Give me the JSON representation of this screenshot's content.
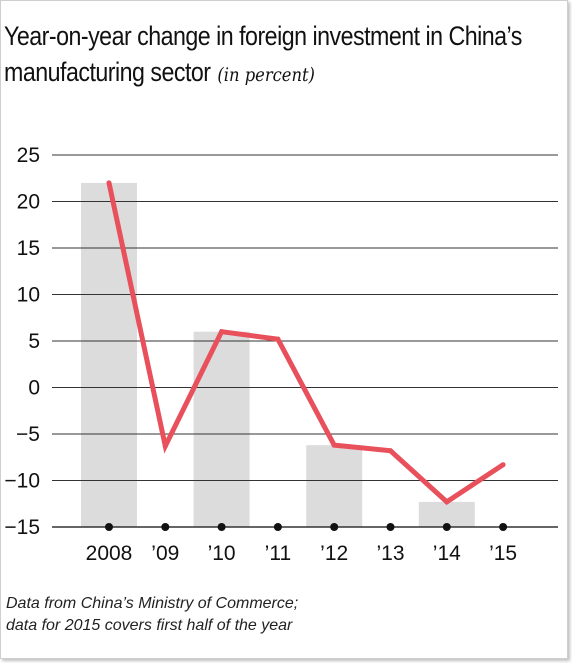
{
  "title_main": "Year-on-year change in foreign investment in China’s manufacturing sector",
  "title_line1": "Year-on-year change in foreign investment in China’s",
  "title_line2": "manufacturing sector",
  "title_unit": "(in percent)",
  "source_line1": "Data from China’s Ministry of Commerce;",
  "source_line2": "data for 2015 covers first half of the year",
  "chart_data": {
    "type": "line",
    "categories": [
      "2008",
      "’09",
      "’10",
      "’11",
      "’12",
      "’13",
      "’14",
      "’15"
    ],
    "values": [
      22.0,
      -6.3,
      6.0,
      5.2,
      -6.2,
      -6.8,
      -12.3,
      -8.3
    ],
    "ylim": [
      -15,
      25
    ],
    "yticks": [
      25,
      20,
      15,
      10,
      5,
      0,
      -5,
      -10,
      -15
    ],
    "ytick_labels": [
      "25",
      "20",
      "15",
      "10",
      "5",
      "0",
      "−5",
      "−10",
      "−15"
    ],
    "shaded_bars": [
      "2008",
      "’10",
      "’12",
      "’14"
    ],
    "grid": true,
    "line_color": "#e8505b",
    "bar_color": "#dcdcdc",
    "grid_color": "#333333"
  }
}
